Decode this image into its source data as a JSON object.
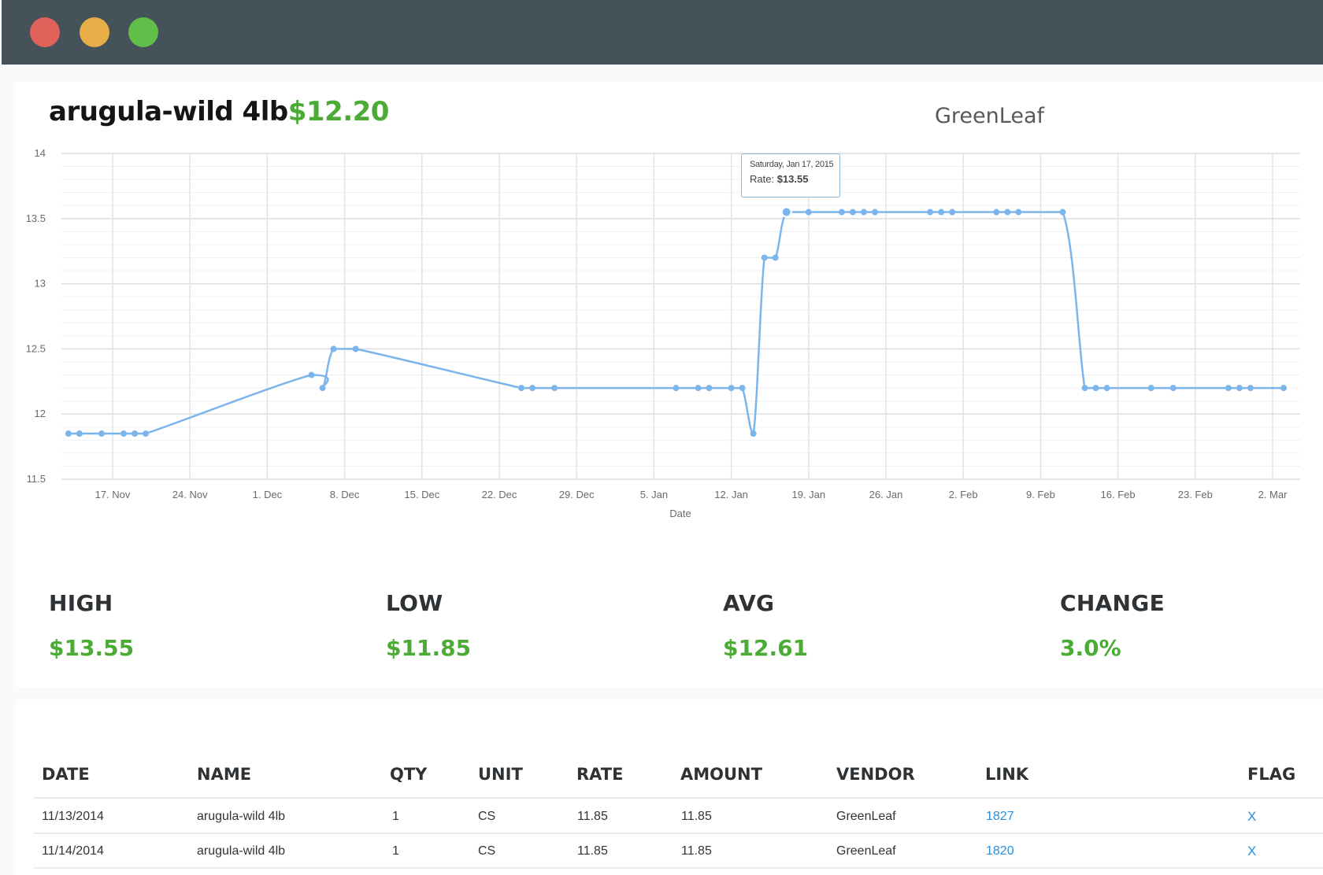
{
  "window": {
    "traffic_lights": [
      "close",
      "minimize",
      "maximize"
    ]
  },
  "product": {
    "name": "arugula-wild 4lb",
    "price": "$12.20",
    "vendor": "GreenLeaf"
  },
  "tooltip": {
    "date": "Saturday, Jan 17, 2015",
    "rate_label": "Rate:",
    "rate_value": "$13.55"
  },
  "stats": [
    {
      "label": "HIGH",
      "value": "$13.55"
    },
    {
      "label": "LOW",
      "value": "$11.85"
    },
    {
      "label": "AVG",
      "value": "$12.61"
    },
    {
      "label": "CHANGE",
      "value": "3.0%"
    }
  ],
  "table": {
    "headers": [
      "DATE",
      "NAME",
      "QTY",
      "UNIT",
      "RATE",
      "AMOUNT",
      "VENDOR",
      "LINK",
      "FLAG"
    ],
    "rows": [
      [
        "11/13/2014",
        "arugula-wild 4lb",
        "1",
        "CS",
        "11.85",
        "11.85",
        "GreenLeaf",
        "1827",
        "X"
      ],
      [
        "11/14/2014",
        "arugula-wild 4lb",
        "1",
        "CS",
        "11.85",
        "11.85",
        "GreenLeaf",
        "1820",
        "X"
      ]
    ]
  },
  "colors": {
    "accent_green": "#4aab35",
    "line_blue": "#7cb5ec",
    "link_blue": "#2a8fd6",
    "titlebar": "#465259"
  },
  "chart_data": {
    "type": "line",
    "x_unit": "date",
    "xlabel": "Date",
    "ylabel": "",
    "ylim": [
      11.5,
      14
    ],
    "y_ticks": [
      11.5,
      12,
      12.5,
      13,
      13.5,
      14
    ],
    "x_ticks": [
      "17. Nov",
      "24. Nov",
      "1. Dec",
      "8. Dec",
      "15. Dec",
      "22. Dec",
      "29. Dec",
      "5. Jan",
      "12. Jan",
      "19. Jan",
      "26. Jan",
      "2. Feb",
      "9. Feb",
      "16. Feb",
      "23. Feb",
      "2. Mar"
    ],
    "grid": true,
    "series": [
      {
        "x": [
          "2014-11-13",
          "2014-11-14",
          "2014-11-16",
          "2014-11-18",
          "2014-11-19",
          "2014-11-20",
          "2014-12-05",
          "2014-12-06",
          "2014-12-07",
          "2014-12-09",
          "2014-12-24",
          "2014-12-25",
          "2014-12-27",
          "2015-01-07",
          "2015-01-09",
          "2015-01-10",
          "2015-01-12",
          "2015-01-13",
          "2015-01-14",
          "2015-01-15",
          "2015-01-16",
          "2015-01-17",
          "2015-01-19",
          "2015-01-22",
          "2015-01-23",
          "2015-01-24",
          "2015-01-25",
          "2015-01-30",
          "2015-01-31",
          "2015-02-01",
          "2015-02-05",
          "2015-02-06",
          "2015-02-07",
          "2015-02-11",
          "2015-02-13",
          "2015-02-14",
          "2015-02-15",
          "2015-02-19",
          "2015-02-21",
          "2015-02-26",
          "2015-02-27",
          "2015-02-28",
          "2015-03-03"
        ],
        "values": [
          11.85,
          11.85,
          11.85,
          11.85,
          11.85,
          11.85,
          12.3,
          12.2,
          12.5,
          12.5,
          12.2,
          12.2,
          12.2,
          12.2,
          12.2,
          12.2,
          12.2,
          12.2,
          11.85,
          13.2,
          13.2,
          13.55,
          13.55,
          13.55,
          13.55,
          13.55,
          13.55,
          13.55,
          13.55,
          13.55,
          13.55,
          13.55,
          13.55,
          13.55,
          12.2,
          12.2,
          12.2,
          12.2,
          12.2,
          12.2,
          12.2,
          12.2,
          12.2
        ]
      }
    ]
  }
}
